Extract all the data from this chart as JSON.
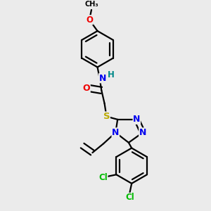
{
  "background_color": "#ebebeb",
  "bond_color": "#000000",
  "bond_width": 1.6,
  "atom_colors": {
    "N": "#0000ee",
    "O": "#ee0000",
    "S": "#bbaa00",
    "Cl": "#00bb00",
    "H": "#008888",
    "C": "#000000"
  },
  "font_size": 8.5,
  "fig_width": 3.0,
  "fig_height": 3.0,
  "dpi": 100
}
